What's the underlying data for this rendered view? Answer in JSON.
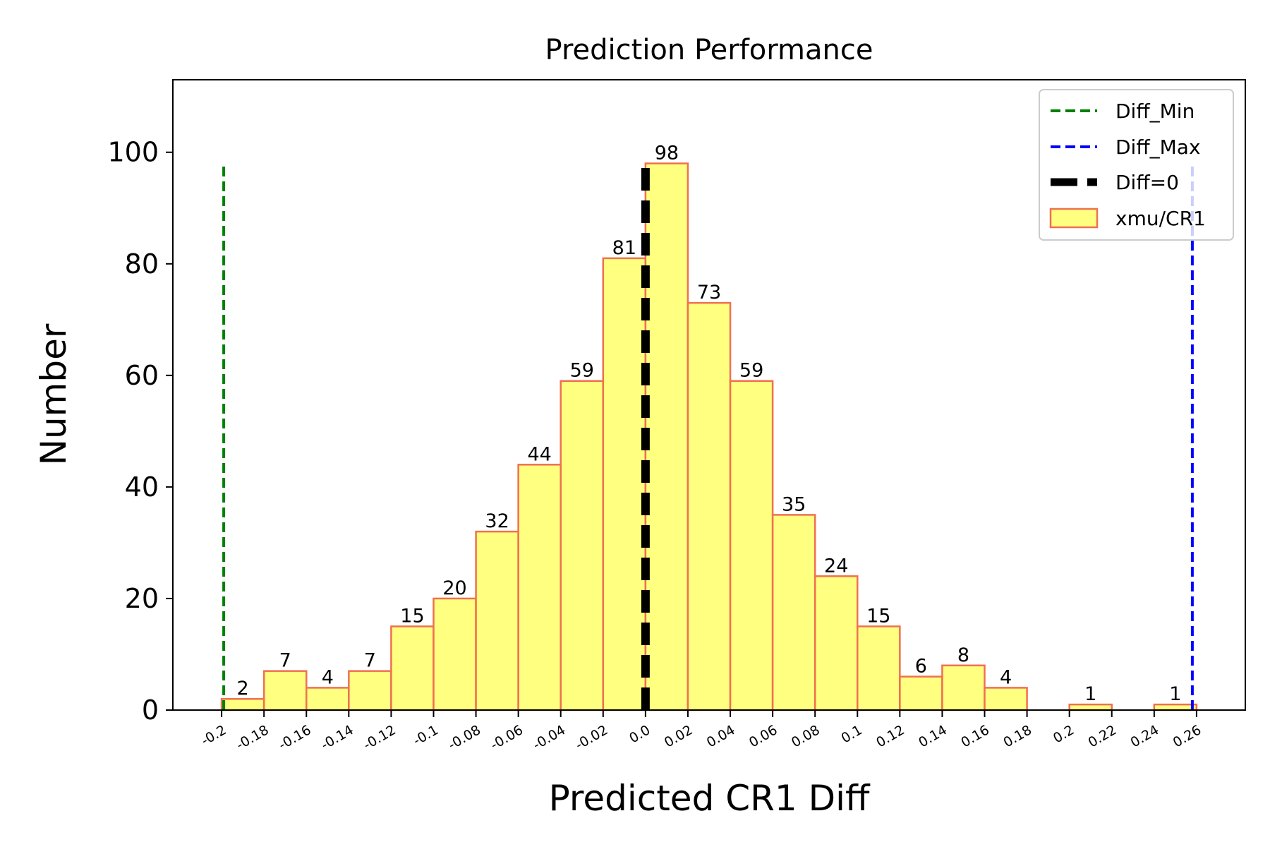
{
  "chart_data": {
    "type": "bar",
    "title": "Prediction Performance",
    "xlabel": "Predicted CR1 Diff",
    "ylabel": "Number",
    "xlim": [
      -0.223,
      0.283
    ],
    "ylim": [
      0,
      113
    ],
    "yticks": [
      0,
      20,
      40,
      60,
      80,
      100
    ],
    "xticks": [
      -0.2,
      -0.18,
      -0.16,
      -0.14,
      -0.12,
      -0.1,
      -0.08,
      -0.06,
      -0.04,
      -0.02,
      0.0,
      0.02,
      0.04,
      0.06,
      0.08,
      0.1,
      0.12,
      0.14,
      0.16,
      0.18,
      0.2,
      0.22,
      0.24,
      0.26
    ],
    "xtick_labels": [
      "-0.2",
      "-0.18",
      "-0.16",
      "-0.14",
      "-0.12",
      "-0.1",
      "-0.08",
      "-0.06",
      "-0.04",
      "-0.02",
      "0.0",
      "0.02",
      "0.04",
      "0.06",
      "0.08",
      "0.1",
      "0.12",
      "0.14",
      "0.16",
      "0.18",
      "0.2",
      "0.22",
      "0.24",
      "0.26"
    ],
    "bin_edges": [
      -0.2,
      -0.18,
      -0.16,
      -0.14,
      -0.12,
      -0.1,
      -0.08,
      -0.06,
      -0.04,
      -0.02,
      0.0,
      0.02,
      0.04,
      0.06,
      0.08,
      0.1,
      0.12,
      0.14,
      0.16,
      0.18,
      0.2,
      0.22,
      0.24,
      0.26
    ],
    "values": [
      2,
      7,
      4,
      7,
      15,
      20,
      32,
      44,
      59,
      81,
      98,
      73,
      59,
      35,
      24,
      15,
      6,
      8,
      4,
      0,
      1,
      0,
      1
    ],
    "bar_labels": [
      "2",
      "7",
      "4",
      "7",
      "15",
      "20",
      "32",
      "44",
      "59",
      "81",
      "98",
      "73",
      "59",
      "35",
      "24",
      "15",
      "6",
      "8",
      "4",
      "",
      "1",
      "",
      "1"
    ],
    "vlines": [
      {
        "name": "Diff_Min",
        "x": -0.199,
        "ymax": 98,
        "color": "#008000",
        "style": "dashed"
      },
      {
        "name": "Diff_Max",
        "x": 0.258,
        "ymax": 98,
        "color": "#0000ff",
        "style": "dashed"
      },
      {
        "name": "Diff=0",
        "x": 0.0,
        "ymax": 98,
        "color": "#000000",
        "style": "dashed-thick"
      }
    ],
    "series": [
      {
        "name": "xmu/CR1",
        "fill": "#ffff80",
        "edge": "#f07050"
      }
    ],
    "legend": {
      "position": "top-right",
      "entries": [
        "Diff_Min",
        "Diff_Max",
        "Diff=0",
        "xmu/CR1"
      ]
    },
    "grid": false
  }
}
